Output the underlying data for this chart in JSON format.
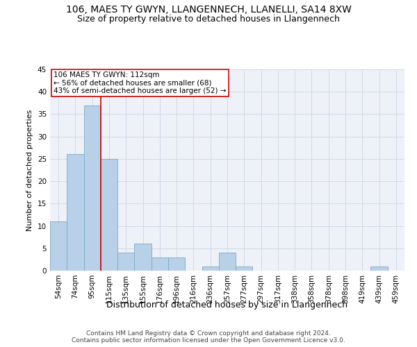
{
  "title": "106, MAES TY GWYN, LLANGENNECH, LLANELLI, SA14 8XW",
  "subtitle": "Size of property relative to detached houses in Llangennech",
  "xlabel": "Distribution of detached houses by size in Llangennech",
  "ylabel": "Number of detached properties",
  "categories": [
    "54sqm",
    "74sqm",
    "95sqm",
    "115sqm",
    "135sqm",
    "155sqm",
    "176sqm",
    "196sqm",
    "216sqm",
    "236sqm",
    "257sqm",
    "277sqm",
    "297sqm",
    "317sqm",
    "338sqm",
    "358sqm",
    "378sqm",
    "398sqm",
    "419sqm",
    "439sqm",
    "459sqm"
  ],
  "values": [
    11,
    26,
    37,
    25,
    4,
    6,
    3,
    3,
    0,
    1,
    4,
    1,
    0,
    0,
    0,
    0,
    0,
    0,
    0,
    1,
    0
  ],
  "bar_color": "#b8d0e8",
  "bar_edge_color": "#7aaac8",
  "property_line_x": 2.5,
  "annotation_line1": "106 MAES TY GWYN: 112sqm",
  "annotation_line2": "← 56% of detached houses are smaller (68)",
  "annotation_line3": "43% of semi-detached houses are larger (52) →",
  "annotation_box_color": "#ffffff",
  "annotation_box_edge": "#cc0000",
  "vline_color": "#cc0000",
  "ylim": [
    0,
    45
  ],
  "yticks": [
    0,
    5,
    10,
    15,
    20,
    25,
    30,
    35,
    40,
    45
  ],
  "grid_color": "#d0d8e8",
  "bg_color": "#eef2f8",
  "footer1": "Contains HM Land Registry data © Crown copyright and database right 2024.",
  "footer2": "Contains public sector information licensed under the Open Government Licence v3.0.",
  "title_fontsize": 10,
  "subtitle_fontsize": 9,
  "ylabel_fontsize": 8,
  "xlabel_fontsize": 9,
  "tick_fontsize": 7.5,
  "footer_fontsize": 6.5,
  "annotation_fontsize": 7.5
}
